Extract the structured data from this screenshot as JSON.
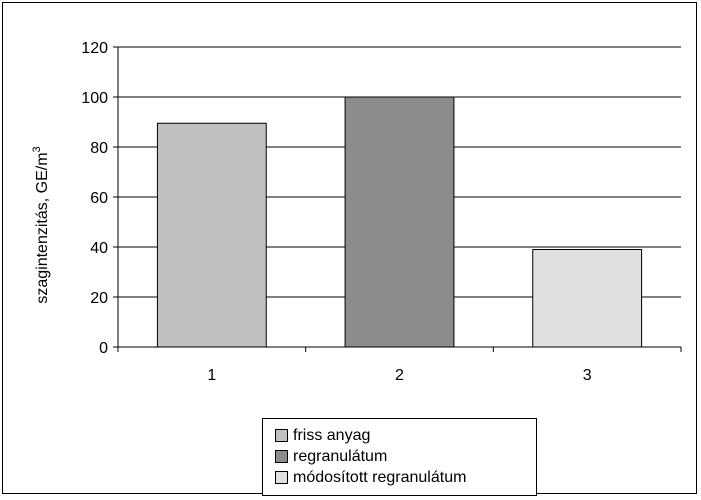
{
  "chart_data": {
    "type": "bar",
    "categories": [
      "1",
      "2",
      "3"
    ],
    "series": [
      {
        "name": "friss anyag",
        "values": [
          89.5,
          null,
          null
        ],
        "color": "#c0c0c0"
      },
      {
        "name": "regranulátum",
        "values": [
          null,
          100,
          null
        ],
        "color": "#8c8c8c"
      },
      {
        "name": "módosított regranulátum",
        "values": [
          null,
          null,
          39
        ],
        "color": "#e0e0e0"
      }
    ],
    "ylabel": "szagintenzitás, GE/m",
    "ylabel_sup": "3",
    "ylim": [
      0,
      120
    ],
    "yticks": [
      "0",
      "20",
      "40",
      "60",
      "80",
      "100",
      "120"
    ],
    "grid": true,
    "legend_position": "bottom"
  }
}
